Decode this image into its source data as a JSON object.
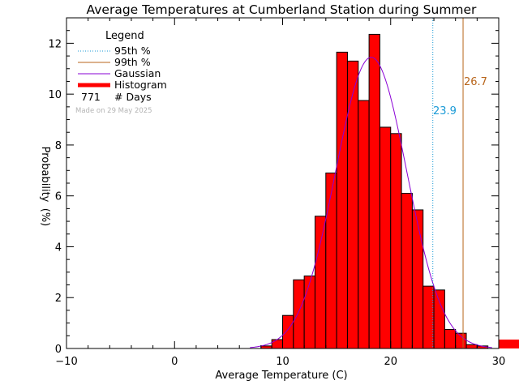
{
  "chart_data": {
    "type": "bar",
    "title": "Average Temperatures at Cumberland Station during Summer",
    "xlabel": "Average Temperature (C)",
    "ylabel": "Probability",
    "ylabel_unit": "(%)",
    "xlim": [
      -10,
      30
    ],
    "ylim": [
      0,
      13
    ],
    "x_ticks": [
      -10,
      0,
      10,
      20,
      30
    ],
    "y_ticks": [
      0,
      2,
      4,
      6,
      8,
      10,
      12
    ],
    "bin_width": 1,
    "histogram": {
      "bin_starts": [
        8,
        9,
        10,
        11,
        12,
        13,
        14,
        15,
        16,
        17,
        18,
        19,
        20,
        21,
        22,
        23,
        24,
        25,
        26,
        27,
        28,
        29
      ],
      "values": [
        0.1,
        0.35,
        1.3,
        2.7,
        2.85,
        5.2,
        6.9,
        11.65,
        11.3,
        9.75,
        12.35,
        8.7,
        8.45,
        6.1,
        5.45,
        2.45,
        2.3,
        0.75,
        0.6,
        0.15,
        0.1,
        0.0
      ]
    },
    "overflow_bin": {
      "bin_start": 30,
      "value": 0.35
    },
    "gaussian": {
      "mean": 18.2,
      "sigma": 3.3,
      "peak": 11.45
    },
    "percentile_95": {
      "value": 23.9,
      "label": "23.9"
    },
    "percentile_99": {
      "value": 26.7,
      "label": "26.7"
    },
    "legend": {
      "title": "Legend",
      "placement": "top-left",
      "entries": [
        {
          "label": "95th %",
          "style": "dotted",
          "color": "#1a9ad6"
        },
        {
          "label": "99th %",
          "style": "solid",
          "color": "#b8651b"
        },
        {
          "label": "Gaussian",
          "style": "solid",
          "color": "#8a00d6"
        },
        {
          "label": "Histogram",
          "style": "thick",
          "color": "#ff0000"
        }
      ],
      "days_count": "771",
      "days_label": "# Days",
      "made_on": "Made on 29 May 2025"
    },
    "colors": {
      "bar_fill": "#ff0000",
      "bar_edge": "#000000",
      "gaussian": "#8a00d6",
      "p95": "#1a9ad6",
      "p99": "#b8651b",
      "axis": "#000000",
      "made_on": "#b4b4b4"
    },
    "grid": false
  }
}
